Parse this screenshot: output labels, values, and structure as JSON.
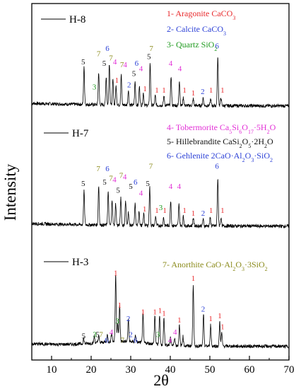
{
  "chart_data": {
    "type": "line",
    "xlabel": "2θ",
    "ylabel": "Intensity",
    "xlim": [
      5,
      70
    ],
    "xticks": [
      10,
      20,
      30,
      40,
      50,
      60,
      70
    ],
    "legend": [
      {
        "num": "1",
        "text": "1- Aragonite CaCO",
        "sub": "3",
        "color": "#e8282b"
      },
      {
        "num": "2",
        "text": "2- Calcite CaCO",
        "sub": "3",
        "color": "#2a3fd6"
      },
      {
        "num": "3",
        "text": "3- Quartz  SiO",
        "sub": "2",
        "color": "#1f9a1f"
      },
      {
        "num": "4",
        "text": "4- Tobermorite Ca5Si6O17·5H2O",
        "color": "#e22fd6"
      },
      {
        "num": "5",
        "text": "5- Hillebrandite CaSi2O5·2H2O",
        "color": "#111111"
      },
      {
        "num": "6",
        "text": "6- Gehlenite  2CaO·Al2O3·SiO2",
        "color": "#2a3fd6"
      },
      {
        "num": "7",
        "text": "7- Anorthite CaO·Al2O3·3SiO2",
        "color": "#8a8a1a"
      }
    ],
    "series": [
      {
        "name": "H-8",
        "peaks": [
          {
            "x": 18.2,
            "h": 0.55
          },
          {
            "x": 21.9,
            "h": 0.48
          },
          {
            "x": 23.8,
            "h": 0.42
          },
          {
            "x": 24.6,
            "h": 0.62
          },
          {
            "x": 25.5,
            "h": 0.38
          },
          {
            "x": 26.3,
            "h": 0.28
          },
          {
            "x": 27.6,
            "h": 0.45
          },
          {
            "x": 29.4,
            "h": 0.22
          },
          {
            "x": 31.1,
            "h": 0.35
          },
          {
            "x": 32.2,
            "h": 0.28
          },
          {
            "x": 33.2,
            "h": 0.18
          },
          {
            "x": 34.9,
            "h": 0.62
          },
          {
            "x": 36.2,
            "h": 0.14
          },
          {
            "x": 38.4,
            "h": 0.14
          },
          {
            "x": 40.2,
            "h": 0.44
          },
          {
            "x": 42.3,
            "h": 0.38
          },
          {
            "x": 43.3,
            "h": 0.12
          },
          {
            "x": 45.8,
            "h": 0.1
          },
          {
            "x": 48.3,
            "h": 0.12
          },
          {
            "x": 50.2,
            "h": 0.1
          },
          {
            "x": 52.0,
            "h": 0.72
          },
          {
            "x": 52.8,
            "h": 0.12
          }
        ],
        "labels": [
          {
            "t": "5",
            "x": 18.0,
            "y": 0.62
          },
          {
            "t": "3",
            "x": 20.8,
            "y": 0.25
          },
          {
            "t": "7",
            "x": 21.9,
            "y": 0.74
          },
          {
            "t": "6",
            "x": 24.1,
            "y": 0.82
          },
          {
            "t": "5",
            "x": 23.3,
            "y": 0.6
          },
          {
            "t": "7",
            "x": 25.0,
            "y": 0.68
          },
          {
            "t": "4",
            "x": 26.0,
            "y": 0.62
          },
          {
            "t": "1",
            "x": 26.5,
            "y": 0.35
          },
          {
            "t": "7",
            "x": 27.8,
            "y": 0.58
          },
          {
            "t": "4",
            "x": 28.6,
            "y": 0.58
          },
          {
            "t": "2",
            "x": 29.6,
            "y": 0.28
          },
          {
            "t": "5",
            "x": 30.8,
            "y": 0.45
          },
          {
            "t": "6",
            "x": 31.5,
            "y": 0.6
          },
          {
            "t": "4",
            "x": 32.6,
            "y": 0.52
          },
          {
            "t": "1",
            "x": 33.6,
            "y": 0.22
          },
          {
            "t": "5",
            "x": 34.6,
            "y": 0.7
          },
          {
            "t": "7",
            "x": 35.2,
            "y": 0.82
          },
          {
            "t": "1",
            "x": 36.6,
            "y": 0.2
          },
          {
            "t": "1",
            "x": 38.4,
            "y": 0.2
          },
          {
            "t": "4",
            "x": 40.1,
            "y": 0.6
          },
          {
            "t": "4",
            "x": 42.4,
            "y": 0.52
          },
          {
            "t": "1",
            "x": 43.6,
            "y": 0.2
          },
          {
            "t": "1",
            "x": 45.8,
            "y": 0.16
          },
          {
            "t": "2",
            "x": 48.2,
            "y": 0.18
          },
          {
            "t": "1",
            "x": 50.3,
            "y": 0.2
          },
          {
            "t": "6",
            "x": 51.8,
            "y": 0.86
          },
          {
            "t": "1",
            "x": 53.2,
            "y": 0.2
          }
        ]
      },
      {
        "name": "H-7",
        "peaks": [
          {
            "x": 18.2,
            "h": 0.5
          },
          {
            "x": 21.9,
            "h": 0.58
          },
          {
            "x": 24.3,
            "h": 0.5
          },
          {
            "x": 25.3,
            "h": 0.38
          },
          {
            "x": 26.2,
            "h": 0.32
          },
          {
            "x": 27.5,
            "h": 0.42
          },
          {
            "x": 28.7,
            "h": 0.36
          },
          {
            "x": 29.4,
            "h": 0.2
          },
          {
            "x": 31.1,
            "h": 0.32
          },
          {
            "x": 32.1,
            "h": 0.22
          },
          {
            "x": 33.3,
            "h": 0.18
          },
          {
            "x": 34.8,
            "h": 0.58
          },
          {
            "x": 36.3,
            "h": 0.14
          },
          {
            "x": 38.3,
            "h": 0.12
          },
          {
            "x": 40.1,
            "h": 0.38
          },
          {
            "x": 42.2,
            "h": 0.32
          },
          {
            "x": 43.3,
            "h": 0.14
          },
          {
            "x": 45.8,
            "h": 0.12
          },
          {
            "x": 48.3,
            "h": 0.1
          },
          {
            "x": 50.1,
            "h": 0.12
          },
          {
            "x": 52.0,
            "h": 0.7
          },
          {
            "x": 52.8,
            "h": 0.12
          }
        ],
        "labels": [
          {
            "t": "5",
            "x": 18.0,
            "y": 0.6
          },
          {
            "t": "7",
            "x": 21.8,
            "y": 0.82
          },
          {
            "t": "5",
            "x": 23.4,
            "y": 0.62
          },
          {
            "t": "6",
            "x": 24.1,
            "y": 0.82
          },
          {
            "t": "7",
            "x": 25.0,
            "y": 0.68
          },
          {
            "t": "4",
            "x": 25.9,
            "y": 0.66
          },
          {
            "t": "5",
            "x": 26.8,
            "y": 0.5
          },
          {
            "t": "7",
            "x": 27.6,
            "y": 0.72
          },
          {
            "t": "4",
            "x": 28.5,
            "y": 0.7
          },
          {
            "t": "5",
            "x": 30.0,
            "y": 0.56
          },
          {
            "t": "6",
            "x": 31.2,
            "y": 0.62
          },
          {
            "t": "4",
            "x": 32.6,
            "y": 0.46
          },
          {
            "t": "1",
            "x": 33.5,
            "y": 0.22
          },
          {
            "t": "5",
            "x": 34.3,
            "y": 0.6
          },
          {
            "t": "7",
            "x": 35.1,
            "y": 0.86
          },
          {
            "t": "1",
            "x": 36.6,
            "y": 0.2
          },
          {
            "t": "3",
            "x": 37.6,
            "y": 0.24
          },
          {
            "t": "1",
            "x": 38.6,
            "y": 0.2
          },
          {
            "t": "4",
            "x": 40.1,
            "y": 0.56
          },
          {
            "t": "4",
            "x": 42.2,
            "y": 0.56
          },
          {
            "t": "1",
            "x": 43.6,
            "y": 0.2
          },
          {
            "t": "1",
            "x": 45.8,
            "y": 0.16
          },
          {
            "t": "2",
            "x": 48.3,
            "y": 0.16
          },
          {
            "t": "1",
            "x": 50.3,
            "y": 0.2
          },
          {
            "t": "6",
            "x": 51.8,
            "y": 0.86
          },
          {
            "t": "1",
            "x": 53.2,
            "y": 0.2
          }
        ]
      },
      {
        "name": "H-3",
        "peaks": [
          {
            "x": 18.1,
            "h": 0.08
          },
          {
            "x": 20.8,
            "h": 0.1
          },
          {
            "x": 21.9,
            "h": 0.1
          },
          {
            "x": 24.1,
            "h": 0.1
          },
          {
            "x": 25.2,
            "h": 0.14
          },
          {
            "x": 26.2,
            "h": 1.0
          },
          {
            "x": 26.7,
            "h": 0.28
          },
          {
            "x": 27.2,
            "h": 0.52
          },
          {
            "x": 29.4,
            "h": 0.32
          },
          {
            "x": 31.2,
            "h": 0.1
          },
          {
            "x": 33.1,
            "h": 0.42
          },
          {
            "x": 36.1,
            "h": 0.42
          },
          {
            "x": 37.3,
            "h": 0.44
          },
          {
            "x": 38.4,
            "h": 0.4
          },
          {
            "x": 40.1,
            "h": 0.12
          },
          {
            "x": 41.1,
            "h": 0.12
          },
          {
            "x": 42.3,
            "h": 0.3
          },
          {
            "x": 43.2,
            "h": 0.14
          },
          {
            "x": 45.8,
            "h": 0.92
          },
          {
            "x": 48.4,
            "h": 0.46
          },
          {
            "x": 50.2,
            "h": 0.32
          },
          {
            "x": 52.5,
            "h": 0.36
          },
          {
            "x": 53.0,
            "h": 0.2
          }
        ],
        "labels": [
          {
            "t": "5",
            "x": 18.1,
            "y": 0.12
          },
          {
            "t": "3",
            "x": 20.9,
            "y": 0.14
          },
          {
            "t": "5",
            "x": 21.6,
            "y": 0.14
          },
          {
            "t": "7",
            "x": 22.5,
            "y": 0.14
          },
          {
            "t": "6",
            "x": 23.9,
            "y": 0.06
          },
          {
            "t": "4",
            "x": 25.1,
            "y": 0.18
          },
          {
            "t": "1",
            "x": 26.2,
            "y": 1.06
          },
          {
            "t": "3",
            "x": 26.6,
            "y": 0.34
          },
          {
            "t": "1",
            "x": 27.2,
            "y": 0.58
          },
          {
            "t": "7",
            "x": 27.9,
            "y": 0.06
          },
          {
            "t": "2",
            "x": 29.4,
            "y": 0.38
          },
          {
            "t": "2",
            "x": 30.0,
            "y": 0.14
          },
          {
            "t": "6",
            "x": 31.2,
            "y": 0.06
          },
          {
            "t": "1",
            "x": 33.1,
            "y": 0.48
          },
          {
            "t": "1",
            "x": 36.1,
            "y": 0.48
          },
          {
            "t": "3",
            "x": 36.9,
            "y": 0.14
          },
          {
            "t": "1",
            "x": 37.4,
            "y": 0.5
          },
          {
            "t": "1",
            "x": 38.4,
            "y": 0.46
          },
          {
            "t": "4",
            "x": 39.9,
            "y": 0.06
          },
          {
            "t": "4",
            "x": 41.2,
            "y": 0.18
          },
          {
            "t": "1",
            "x": 42.3,
            "y": 0.36
          },
          {
            "t": "1",
            "x": 45.8,
            "y": 0.98
          },
          {
            "t": "2",
            "x": 48.3,
            "y": 0.52
          },
          {
            "t": "1",
            "x": 50.2,
            "y": 0.38
          },
          {
            "t": "1",
            "x": 52.5,
            "y": 0.42
          },
          {
            "t": "1",
            "x": 53.2,
            "y": 0.26
          }
        ]
      }
    ]
  }
}
